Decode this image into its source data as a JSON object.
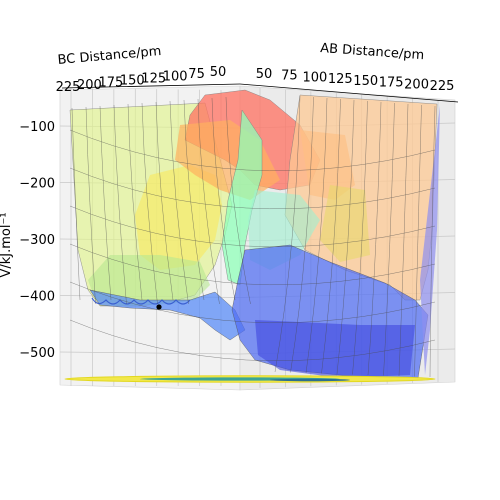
{
  "chart_data": {
    "type": "surface",
    "xlabel": "AB Distance/pm",
    "ylabel": "BC Distance/pm",
    "zlabel": "V/kJ.mol⁻¹",
    "x_ticks": [
      "50",
      "75",
      "100",
      "125",
      "150",
      "175",
      "200",
      "225"
    ],
    "y_ticks": [
      "50",
      "75",
      "100",
      "125",
      "150",
      "175",
      "200",
      "225"
    ],
    "z_ticks": [
      "−100",
      "−200",
      "−300",
      "−400",
      "−500"
    ],
    "z_range": [
      -570,
      -95
    ],
    "grid": true,
    "marker": {
      "x": 175,
      "y": 75,
      "z": -432,
      "color": "#000000"
    },
    "colormap": "jet"
  }
}
